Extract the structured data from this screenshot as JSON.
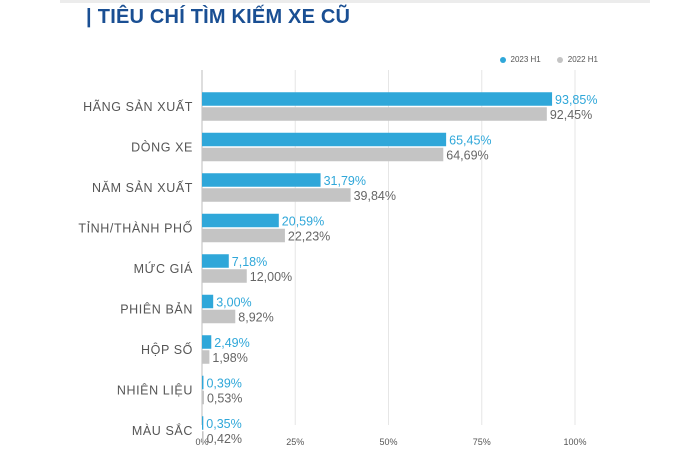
{
  "title": "TIÊU CHÍ TÌM KIẾM XE CŨ",
  "title_marker": "|",
  "colors": {
    "series_2023": "#2fa7d9",
    "series_2022": "#c4c4c4",
    "title": "#1a4f93"
  },
  "chart_data": {
    "type": "bar",
    "orientation": "horizontal",
    "title": "TIÊU CHÍ TÌM KIẾM XE CŨ",
    "categories": [
      "HÃNG SẢN XUẤT",
      "DÒNG XE",
      "NĂM SẢN XUẤT",
      "TỈNH/THÀNH PHỐ",
      "MỨC GIÁ",
      "PHIÊN BẢN",
      "HỘP SỐ",
      "NHIÊN LIỆU",
      "MÀU SẮC"
    ],
    "series": [
      {
        "name": "2023 H1",
        "values": [
          93.85,
          65.45,
          31.79,
          20.59,
          7.18,
          3.0,
          2.49,
          0.39,
          0.35
        ],
        "labels": [
          "93,85%",
          "65,45%",
          "31,79%",
          "20,59%",
          "7,18%",
          "3,00%",
          "2,49%",
          "0,39%",
          "0,35%"
        ]
      },
      {
        "name": "2022 H1",
        "values": [
          92.45,
          64.69,
          39.84,
          22.23,
          12.0,
          8.92,
          1.98,
          0.53,
          0.42
        ],
        "labels": [
          "92,45%",
          "64,69%",
          "39,84%",
          "22,23%",
          "12,00%",
          "8,92%",
          "1,98%",
          "0,53%",
          "0,42%"
        ]
      }
    ],
    "xlim": [
      0,
      100
    ],
    "xticks": [
      "0%",
      "25%",
      "50%",
      "75%",
      "100%"
    ],
    "grid": true,
    "legend_position": "top-right"
  }
}
